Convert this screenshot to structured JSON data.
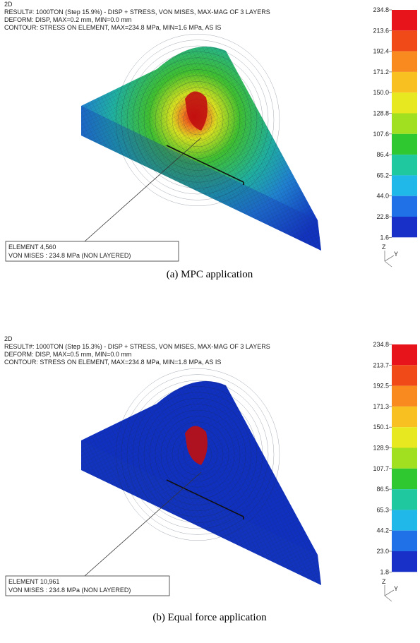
{
  "panels": [
    {
      "header": {
        "label": "2D",
        "result": "RESULT#: 1000TON (Step 15.9%) - DISP + STRESS, VON MISES, MAX-MAG OF 3 LAYERS",
        "deform": "DEFORM: DISP, MAX=0.2 mm, MIN=0.0 mm",
        "contour": "CONTOUR: STRESS ON ELEMENT, MAX=234.8 MPa, MIN=1.6 MPa, AS IS"
      },
      "legend": [
        "234.8",
        "213.6",
        "192.4",
        "171.2",
        "150.0",
        "128.8",
        "107.6",
        "86.4",
        "65.2",
        "44.0",
        "22.8",
        "1.6"
      ],
      "callout": {
        "element": "ELEMENT 4,560",
        "stress": "VON MISES : 234.8 MPa (NON LAYERED)"
      },
      "triad": {
        "z": "Z",
        "y": "Y"
      },
      "caption": "(a)  MPC  application"
    },
    {
      "header": {
        "label": "2D",
        "result": "RESULT#: 1000TON (Step 15.3%) - DISP + STRESS, VON MISES, MAX-MAG OF 3 LAYERS",
        "deform": "DEFORM: DISP, MAX=0.5 mm, MIN=0.0 mm",
        "contour": "CONTOUR: STRESS ON ELEMENT, MAX=234.8 MPa, MIN=1.8 MPa, AS IS"
      },
      "legend": [
        "234.8",
        "213.7",
        "192.5",
        "171.3",
        "150.1",
        "128.9",
        "107.7",
        "86.5",
        "65.3",
        "44.2",
        "23.0",
        "1.8"
      ],
      "callout": {
        "element": "ELEMENT 10,961",
        "stress": "VON MISES : 234.8 MPa (NON LAYERED)"
      },
      "triad": {
        "z": "Z",
        "y": "Y"
      },
      "caption": "(b)  Equal  force  application"
    }
  ]
}
